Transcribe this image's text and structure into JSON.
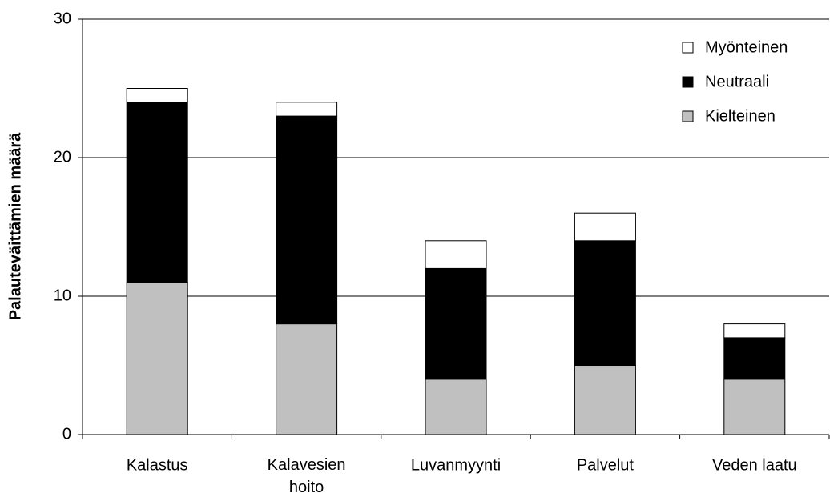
{
  "chart_data": {
    "type": "stacked_bar",
    "y_label": "Palauteväittämien määrä",
    "categories": [
      "Kalastus",
      "Kalavesien hoito",
      "Luvanmyynti",
      "Palvelut",
      "Veden laatu"
    ],
    "series": [
      {
        "name": "Kielteinen",
        "color": "#c0c0c0",
        "values": [
          11,
          8,
          4,
          5,
          4
        ]
      },
      {
        "name": "Neutraali",
        "color": "#000000",
        "values": [
          13,
          15,
          8,
          9,
          3
        ]
      },
      {
        "name": "Myönteinen",
        "color": "#ffffff",
        "values": [
          1,
          1,
          2,
          2,
          1
        ]
      }
    ],
    "ylim": [
      0,
      30
    ],
    "yticks": [
      0,
      10,
      20,
      30
    ],
    "grid": true,
    "legend": "top-right"
  }
}
